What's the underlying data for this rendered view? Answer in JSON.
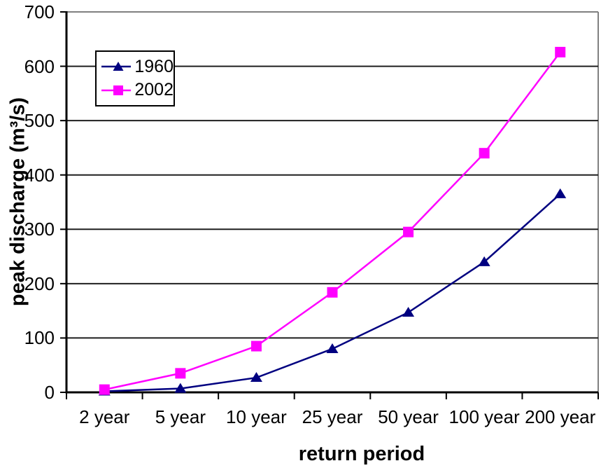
{
  "chart_data": {
    "type": "line",
    "categories": [
      "2 year",
      "5 year",
      "10 year",
      "25 year",
      "50 year",
      "100 year",
      "200 year"
    ],
    "series": [
      {
        "name": "1960",
        "color": "#000080",
        "marker": "triangle",
        "values": [
          2,
          7,
          27,
          80,
          147,
          240,
          365
        ]
      },
      {
        "name": "2002",
        "color": "#FF00FF",
        "marker": "square",
        "values": [
          5,
          35,
          85,
          184,
          295,
          440,
          626
        ]
      }
    ],
    "title": "",
    "xlabel": "return period",
    "ylabel": "peak discharge (m³/s)",
    "ylim": [
      0,
      700
    ],
    "ytick_interval": 100,
    "yticks": [
      0,
      100,
      200,
      300,
      400,
      500,
      600,
      700
    ],
    "grid": true,
    "legend_position": "top-left-inside",
    "colors": {
      "gridline": "#1F1F1F",
      "axis": "#000000",
      "plot_border": "#808080",
      "background": "#FFFFFF"
    }
  }
}
